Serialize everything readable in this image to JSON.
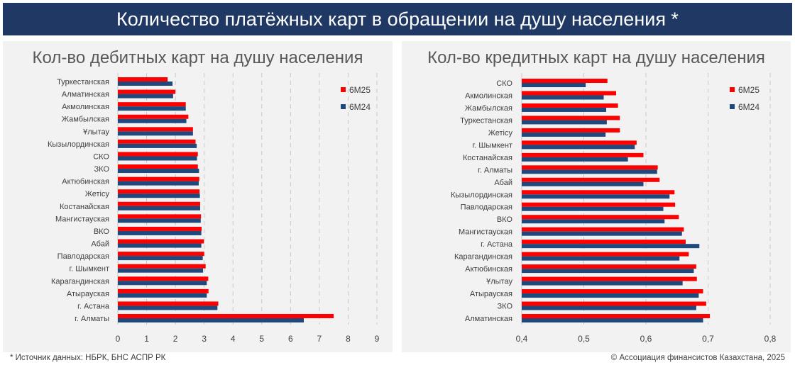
{
  "title": "Количество платёжных карт в обращении на душу населения *",
  "footer": {
    "source": "* Источник данных: НБРК, БНС АСПР РК",
    "copyright": "© Ассоциация финансистов Казахстана, 2025"
  },
  "colors": {
    "6M25": "#ff0000",
    "6M24": "#1f497d"
  },
  "chart_data": [
    {
      "type": "bar",
      "orientation": "horizontal",
      "title": "Кол-во дебитных карт на душу населения",
      "xlim": [
        0,
        9
      ],
      "xticks": [
        0,
        1,
        2,
        3,
        4,
        5,
        6,
        7,
        8,
        9
      ],
      "grid": true,
      "legend": "right",
      "categories": [
        "Туркестанская",
        "Алматинская",
        "Акмолинская",
        "Жамбылская",
        "Ұлытау",
        "Кызылординская",
        "СКО",
        "ЗКО",
        "Актюбинская",
        "Жетісу",
        "Костанайская",
        "Мангистауская",
        "ВКО",
        "Абай",
        "Павлодарская",
        "г. Шымкент",
        "Карагандинская",
        "Атырауская",
        "г. Астана",
        "г. Алматы"
      ],
      "series": [
        {
          "name": "6M25",
          "values": [
            1.73,
            2.0,
            2.36,
            2.45,
            2.61,
            2.7,
            2.78,
            2.78,
            2.83,
            2.84,
            2.86,
            2.89,
            2.91,
            2.99,
            3.0,
            3.05,
            3.14,
            3.15,
            3.49,
            7.5
          ]
        },
        {
          "name": "6M24",
          "values": [
            1.9,
            1.92,
            2.36,
            2.38,
            2.61,
            2.74,
            2.75,
            2.82,
            2.81,
            2.85,
            2.86,
            2.88,
            2.9,
            2.9,
            2.95,
            2.96,
            3.09,
            3.09,
            3.46,
            6.46
          ]
        }
      ]
    },
    {
      "type": "bar",
      "orientation": "horizontal",
      "title": "Кол-во кредитных карт на душу населения",
      "xlim": [
        0.4,
        0.8
      ],
      "xticks": [
        "0,4",
        "0,5",
        "0,6",
        "0,7",
        "0,8"
      ],
      "grid": true,
      "legend": "right",
      "categories": [
        "СКО",
        "Акмолинская",
        "Жамбылская",
        "Туркестанская",
        "Жетісу",
        "г. Шымкент",
        "Костанайская",
        "г. Алматы",
        "Абай",
        "Кызылординская",
        "Павлодарская",
        "ВКО",
        "Мангистауская",
        "г. Астана",
        "Карагандинская",
        "Актюбинская",
        "Ұлытау",
        "Атырауская",
        "ЗКО",
        "Алматинская"
      ],
      "series": [
        {
          "name": "6M25",
          "values": [
            0.538,
            0.552,
            0.555,
            0.558,
            0.558,
            0.585,
            0.596,
            0.619,
            0.622,
            0.646,
            0.647,
            0.653,
            0.661,
            0.664,
            0.669,
            0.681,
            0.682,
            0.692,
            0.697,
            0.703
          ]
        },
        {
          "name": "6M24",
          "values": [
            0.503,
            0.532,
            0.536,
            0.537,
            0.535,
            0.582,
            0.571,
            0.618,
            0.596,
            0.638,
            0.628,
            0.63,
            0.658,
            0.686,
            0.654,
            0.677,
            0.659,
            0.685,
            0.681,
            0.692
          ]
        }
      ]
    }
  ]
}
